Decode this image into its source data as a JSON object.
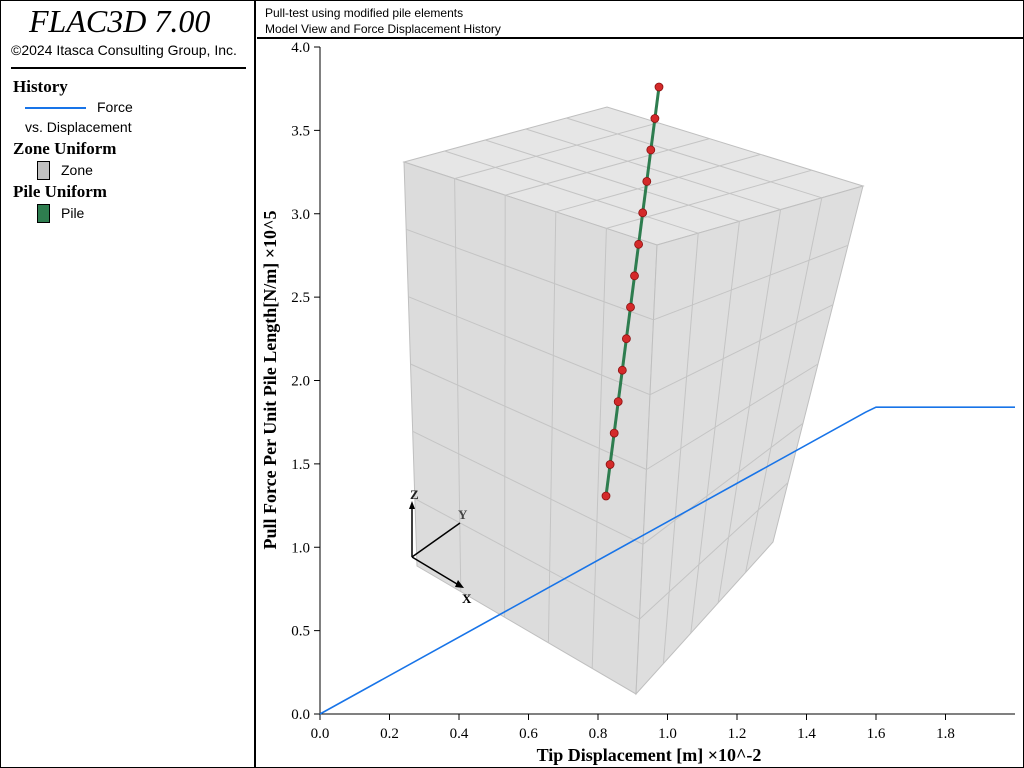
{
  "app": {
    "title": "FLAC3D 7.00",
    "copyright": "©2024 Itasca Consulting Group, Inc."
  },
  "header": {
    "line1": "Pull-test using modified pile elements",
    "line2": "Model View and Force Displacement History"
  },
  "legend": {
    "history_heading": "History",
    "history_item": "Force",
    "history_item_line2": "vs. Displacement",
    "history_color": "#1874e8",
    "zone_heading": "Zone Uniform",
    "zone_item": "Zone",
    "zone_color": "#c0c0c0",
    "pile_heading": "Pile Uniform",
    "pile_item": "Pile",
    "pile_color": "#2e7d4f"
  },
  "axes_triad": {
    "x": "X",
    "y": "Y",
    "z": "Z"
  },
  "chart_data": {
    "type": "line",
    "xlabel": "Tip Displacement [m] ×10^-2",
    "ylabel": "Pull Force Per Unit Pile Length[N/m] ×10^5",
    "xlim": [
      0,
      2.0
    ],
    "ylim": [
      0,
      4.0
    ],
    "xticks": [
      "0.0",
      "0.2",
      "0.4",
      "0.6",
      "0.8",
      "1.0",
      "1.2",
      "1.4",
      "1.6",
      "1.8"
    ],
    "yticks": [
      "0.0",
      "0.5",
      "1.0",
      "1.5",
      "2.0",
      "2.5",
      "3.0",
      "3.5",
      "4.0"
    ],
    "series": [
      {
        "name": "Force vs. Displacement",
        "color": "#1874e8",
        "x": [
          0.0,
          1.57,
          1.6,
          2.0
        ],
        "y": [
          0.0,
          1.81,
          1.84,
          1.84
        ]
      }
    ]
  }
}
